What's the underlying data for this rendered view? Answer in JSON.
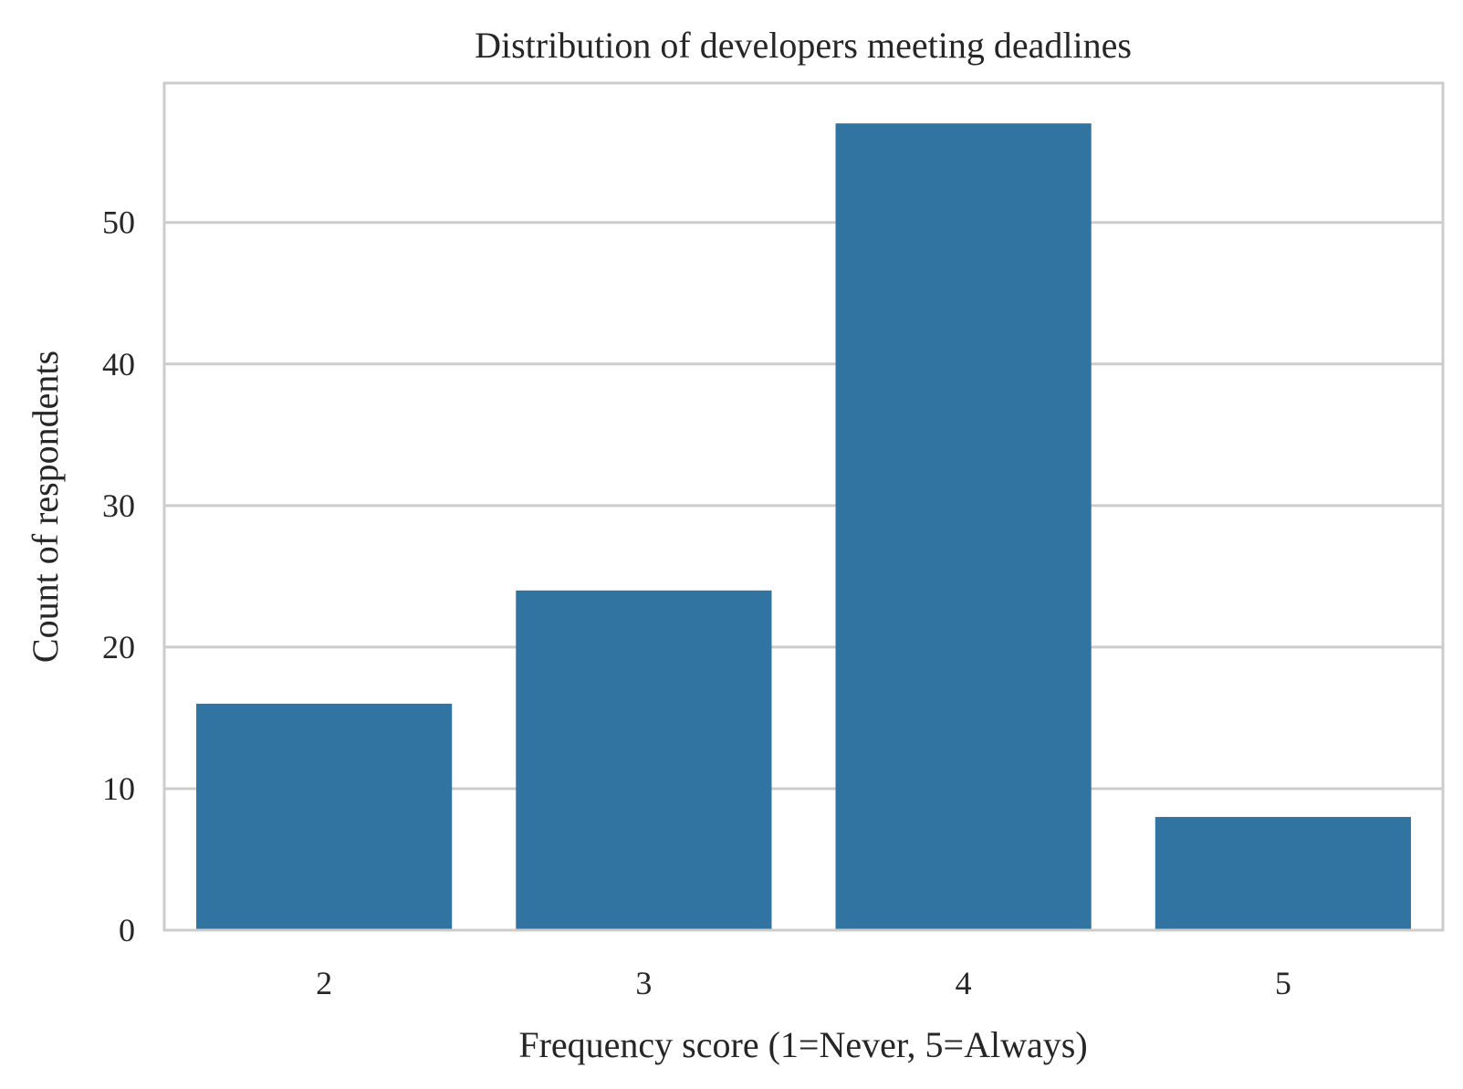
{
  "chart_data": {
    "type": "bar",
    "title": "Distribution of developers meeting deadlines",
    "xlabel": "Frequency score (1=Never, 5=Always)",
    "ylabel": "Count of respondents",
    "categories": [
      "2",
      "3",
      "4",
      "5"
    ],
    "values": [
      16,
      24,
      57,
      8
    ],
    "yticks": [
      0,
      10,
      20,
      30,
      40,
      50
    ],
    "ylim": [
      0,
      59.85
    ],
    "grid": true,
    "legend": "none",
    "bar_color": "#3274a1",
    "grid_color": "#cccccc",
    "frame_color": "#cccccc",
    "text_color": "#262626"
  }
}
